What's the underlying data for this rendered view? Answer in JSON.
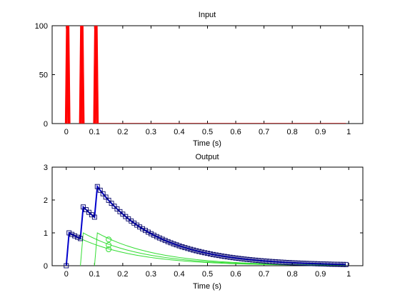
{
  "chart_data": [
    {
      "type": "line",
      "title": "Input",
      "xlabel": "Time (s)",
      "ylabel": "",
      "xlim": [
        -0.05,
        1.05
      ],
      "ylim": [
        0,
        100
      ],
      "xticks": [
        0,
        0.1,
        0.2,
        0.3,
        0.4,
        0.5,
        0.6,
        0.7,
        0.8,
        0.9,
        1
      ],
      "xtick_labels": [
        "0",
        "0.1",
        "0.2",
        "0.3",
        "0.4",
        "0.5",
        "0.6",
        "0.7",
        "0.8",
        "0.9",
        "1"
      ],
      "yticks": [
        0,
        50,
        100
      ],
      "ytick_labels": [
        "0",
        "50",
        "100"
      ],
      "grid": false,
      "series": [
        {
          "color": "#ff0000",
          "style": "impulse-pulses",
          "pulses": [
            {
              "x_start": 0.0,
              "x_end": 0.01,
              "x_peak": 0.005
            },
            {
              "x_start": 0.05,
              "x_end": 0.06,
              "x_peak": 0.055
            },
            {
              "x_start": 0.1,
              "x_end": 0.11,
              "x_peak": 0.105
            }
          ],
          "baseline": {
            "x": [
              0.11,
              0.99
            ],
            "y": 0,
            "color": "#aa0000"
          }
        }
      ]
    },
    {
      "type": "line",
      "title": "Output",
      "xlabel": "Time (s)",
      "ylabel": "",
      "xlim": [
        -0.05,
        1.05
      ],
      "ylim": [
        0,
        3
      ],
      "xticks": [
        0,
        0.1,
        0.2,
        0.3,
        0.4,
        0.5,
        0.6,
        0.7,
        0.8,
        0.9,
        1
      ],
      "xtick_labels": [
        "0",
        "0.1",
        "0.2",
        "0.3",
        "0.4",
        "0.5",
        "0.6",
        "0.7",
        "0.8",
        "0.9",
        "1"
      ],
      "yticks": [
        0,
        1,
        2,
        3
      ],
      "ytick_labels": [
        "0",
        "1",
        "2",
        "3"
      ],
      "grid": false,
      "total_response": {
        "color": "#0000cc",
        "marker": "square",
        "marker_color": "#000066",
        "x_start": 0.0,
        "x_step": 0.01,
        "points": 100,
        "model": "superposition of three decaying pulse responses",
        "pulse_times": [
          0.0,
          0.05,
          0.1
        ],
        "amplitude": 1.0,
        "decay_tau": 0.21,
        "rise_time": 0.01,
        "sample_points": [
          [
            0,
            0
          ],
          [
            0.01,
            0.99
          ],
          [
            0.05,
            0.81
          ],
          [
            0.06,
            1.77
          ],
          [
            0.1,
            1.47
          ],
          [
            0.11,
            2.37
          ],
          [
            0.15,
            1.95
          ],
          [
            0.3,
            1.12
          ],
          [
            0.5,
            0.43
          ],
          [
            0.7,
            0.16
          ],
          [
            0.9,
            0.06
          ],
          [
            0.99,
            0.04
          ]
        ]
      },
      "component_responses": {
        "color": "#33dd33",
        "lines": [
          {
            "x_start": 0.0,
            "peak": 1.0,
            "from_x": 0.0
          },
          {
            "x_start": 0.05,
            "peak": 1.0,
            "from_x": 0.05
          },
          {
            "x_start": 0.1,
            "peak": 1.0,
            "from_x": 0.1
          }
        ],
        "circle_markers_x": 0.15,
        "circle_marker_values": [
          0.5,
          0.63,
          0.8
        ]
      }
    }
  ]
}
